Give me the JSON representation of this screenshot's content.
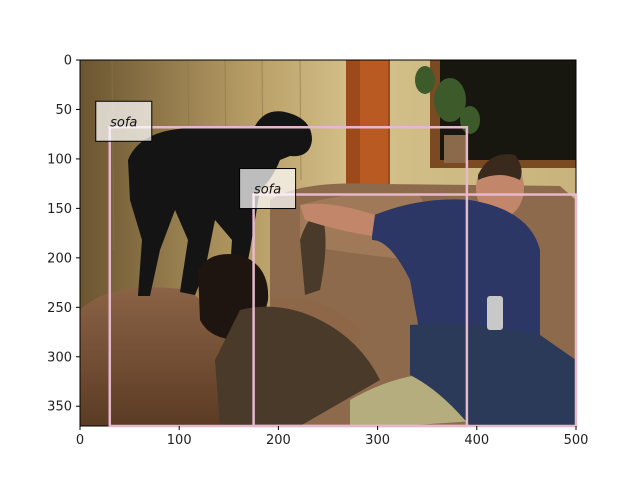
{
  "image": {
    "x_range": [
      0,
      500
    ],
    "y_range": [
      0,
      370
    ],
    "scene": "photo-of-living-room"
  },
  "axes": {
    "x_ticks": [
      "0",
      "100",
      "200",
      "300",
      "400",
      "500"
    ],
    "y_ticks": [
      "0",
      "50",
      "100",
      "150",
      "200",
      "250",
      "300",
      "350"
    ],
    "x_tick_values": [
      0,
      100,
      200,
      300,
      400,
      500
    ],
    "y_tick_values": [
      0,
      50,
      100,
      150,
      200,
      250,
      300,
      350
    ]
  },
  "detections": [
    {
      "label": "sofa",
      "x0": 30,
      "y0": 68,
      "x1": 390,
      "y1": 370,
      "color": "#e6b8cc"
    },
    {
      "label": "sofa",
      "x0": 175,
      "y0": 136,
      "x1": 500,
      "y1": 370,
      "color": "#e6b8cc"
    }
  ],
  "colors": {
    "wall": "#c6b07a",
    "wall_shadow": "#5e4a2a",
    "sofa": "#8a6040",
    "sofa_dark": "#5a3a22",
    "dog": "#141414",
    "shirt_man": "#2c3766",
    "jeans": "#2a3a58",
    "pants_woman": "#b5ad7e",
    "hair": "#1e1510",
    "skin": "#c2876a",
    "door_frame": "#a24e1c",
    "window": "#1a1a18",
    "box": "#e6b8cc"
  }
}
